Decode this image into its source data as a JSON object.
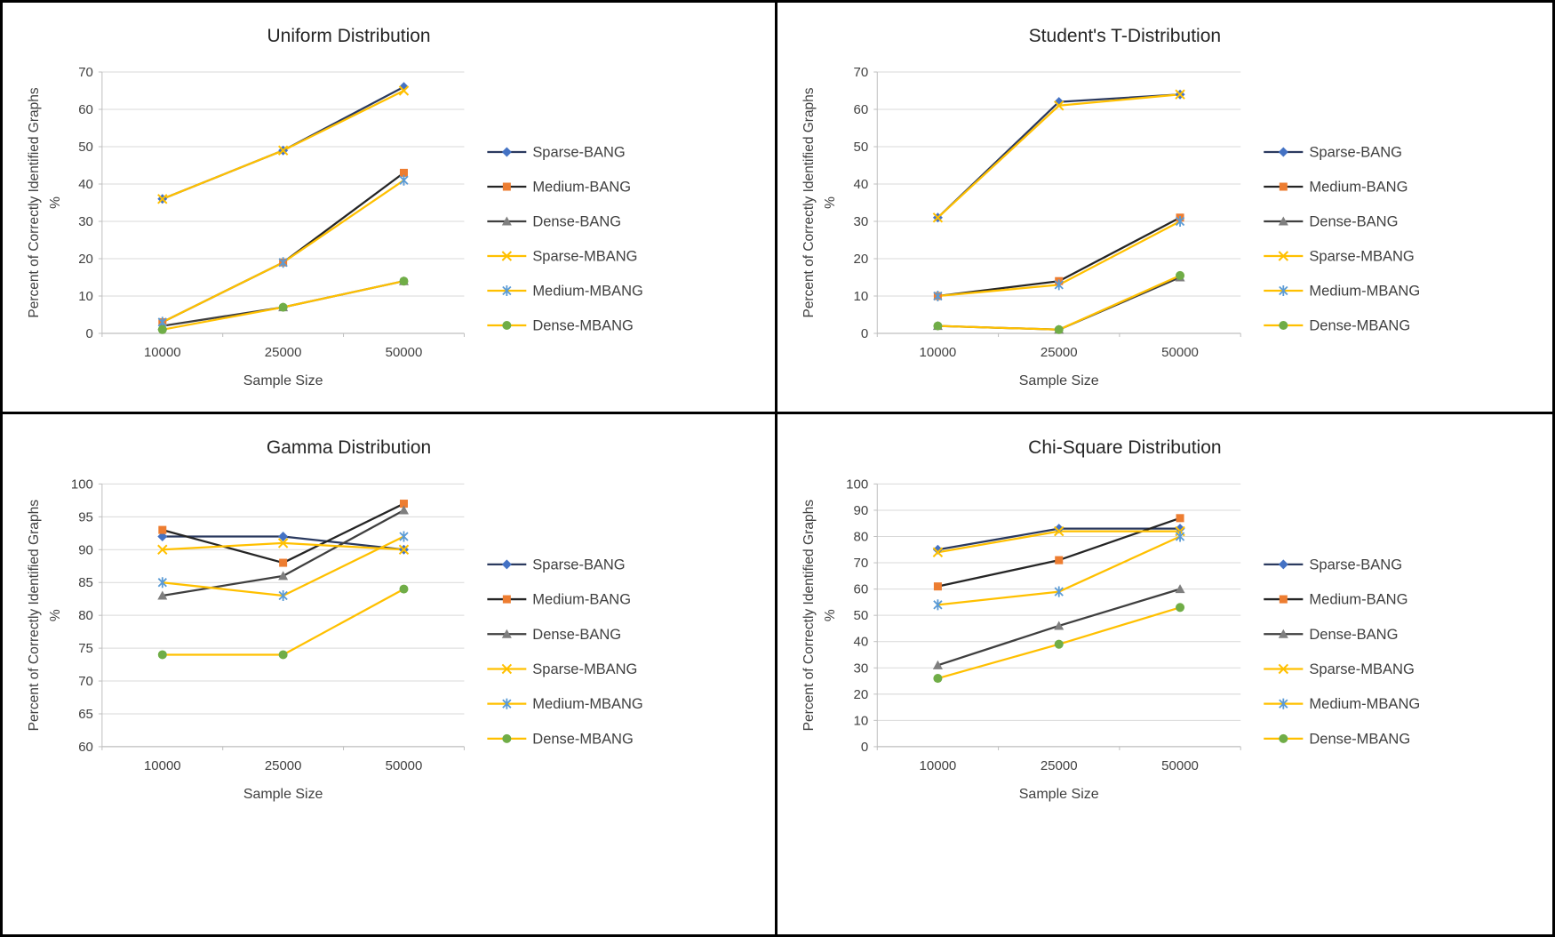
{
  "style": {
    "background": "#ffffff",
    "border_color": "#000000",
    "grid_color": "#d9d9d9",
    "axis_color": "#bfbfbf",
    "tick_text_color": "#404040",
    "title_color": "#262626",
    "legend_text_color": "#404040"
  },
  "series_meta": [
    {
      "name": "Sparse-BANG",
      "line_color": "#2b3a5f",
      "marker": "diamond",
      "marker_color": "#4472c4"
    },
    {
      "name": "Medium-BANG",
      "line_color": "#252525",
      "marker": "square",
      "marker_color": "#ed7d31"
    },
    {
      "name": "Dense-BANG",
      "line_color": "#3f3f3f",
      "marker": "triangle",
      "marker_color": "#7f7f7f"
    },
    {
      "name": "Sparse-MBANG",
      "line_color": "#ffc000",
      "marker": "x",
      "marker_color": "#ffc000"
    },
    {
      "name": "Medium-MBANG",
      "line_color": "#ffc000",
      "marker": "star",
      "marker_color": "#5b9bd5"
    },
    {
      "name": "Dense-MBANG",
      "line_color": "#ffc000",
      "marker": "circle",
      "marker_color": "#70ad47"
    }
  ],
  "chart_data": [
    {
      "type": "line",
      "title": "Uniform Distribution",
      "xlabel": "Sample Size",
      "ylabel": "Percent of Correctly Identified Graphs",
      "ylabel_unit": "%",
      "categories": [
        "10000",
        "25000",
        "50000"
      ],
      "ylim": [
        0,
        70
      ],
      "ytick_step": 10,
      "grid": true,
      "legend_position": "right",
      "series": [
        {
          "name": "Sparse-BANG",
          "values": [
            36,
            49,
            66
          ]
        },
        {
          "name": "Medium-BANG",
          "values": [
            3,
            19,
            43
          ]
        },
        {
          "name": "Dense-BANG",
          "values": [
            2,
            7,
            14
          ]
        },
        {
          "name": "Sparse-MBANG",
          "values": [
            36,
            49,
            65
          ]
        },
        {
          "name": "Medium-MBANG",
          "values": [
            3,
            19,
            41
          ]
        },
        {
          "name": "Dense-MBANG",
          "values": [
            1,
            7,
            14
          ]
        }
      ]
    },
    {
      "type": "line",
      "title": "Student's T-Distribution",
      "xlabel": "Sample Size",
      "ylabel": "Percent of Correctly Identified Graphs",
      "ylabel_unit": "%",
      "categories": [
        "10000",
        "25000",
        "50000"
      ],
      "ylim": [
        0,
        70
      ],
      "ytick_step": 10,
      "grid": true,
      "legend_position": "right",
      "series": [
        {
          "name": "Sparse-BANG",
          "values": [
            31,
            62,
            64
          ]
        },
        {
          "name": "Medium-BANG",
          "values": [
            10,
            14,
            31
          ]
        },
        {
          "name": "Dense-BANG",
          "values": [
            2,
            1,
            15
          ]
        },
        {
          "name": "Sparse-MBANG",
          "values": [
            31,
            61,
            64
          ]
        },
        {
          "name": "Medium-MBANG",
          "values": [
            10,
            13,
            30
          ]
        },
        {
          "name": "Dense-MBANG",
          "values": [
            2,
            1,
            15.5
          ]
        }
      ]
    },
    {
      "type": "line",
      "title": "Gamma Distribution",
      "xlabel": "Sample Size",
      "ylabel": "Percent of Correctly Identified Graphs",
      "ylabel_unit": "%",
      "categories": [
        "10000",
        "25000",
        "50000"
      ],
      "ylim": [
        60,
        100
      ],
      "ytick_step": 5,
      "grid": true,
      "legend_position": "right",
      "series": [
        {
          "name": "Sparse-BANG",
          "values": [
            92,
            92,
            90
          ]
        },
        {
          "name": "Medium-BANG",
          "values": [
            93,
            88,
            97
          ]
        },
        {
          "name": "Dense-BANG",
          "values": [
            83,
            86,
            96
          ]
        },
        {
          "name": "Sparse-MBANG",
          "values": [
            90,
            91,
            90
          ]
        },
        {
          "name": "Medium-MBANG",
          "values": [
            85,
            83,
            92
          ]
        },
        {
          "name": "Dense-MBANG",
          "values": [
            74,
            74,
            84
          ]
        }
      ]
    },
    {
      "type": "line",
      "title": "Chi-Square Distribution",
      "xlabel": "Sample Size",
      "ylabel": "Percent of Correctly Identified Graphs",
      "ylabel_unit": "%",
      "categories": [
        "10000",
        "25000",
        "50000"
      ],
      "ylim": [
        0,
        100
      ],
      "ytick_step": 10,
      "grid": true,
      "legend_position": "right",
      "series": [
        {
          "name": "Sparse-BANG",
          "values": [
            75,
            83,
            83
          ]
        },
        {
          "name": "Medium-BANG",
          "values": [
            61,
            71,
            87
          ]
        },
        {
          "name": "Dense-BANG",
          "values": [
            31,
            46,
            60
          ]
        },
        {
          "name": "Sparse-MBANG",
          "values": [
            74,
            82,
            82
          ]
        },
        {
          "name": "Medium-MBANG",
          "values": [
            54,
            59,
            80
          ]
        },
        {
          "name": "Dense-MBANG",
          "values": [
            26,
            39,
            53
          ]
        }
      ]
    }
  ]
}
